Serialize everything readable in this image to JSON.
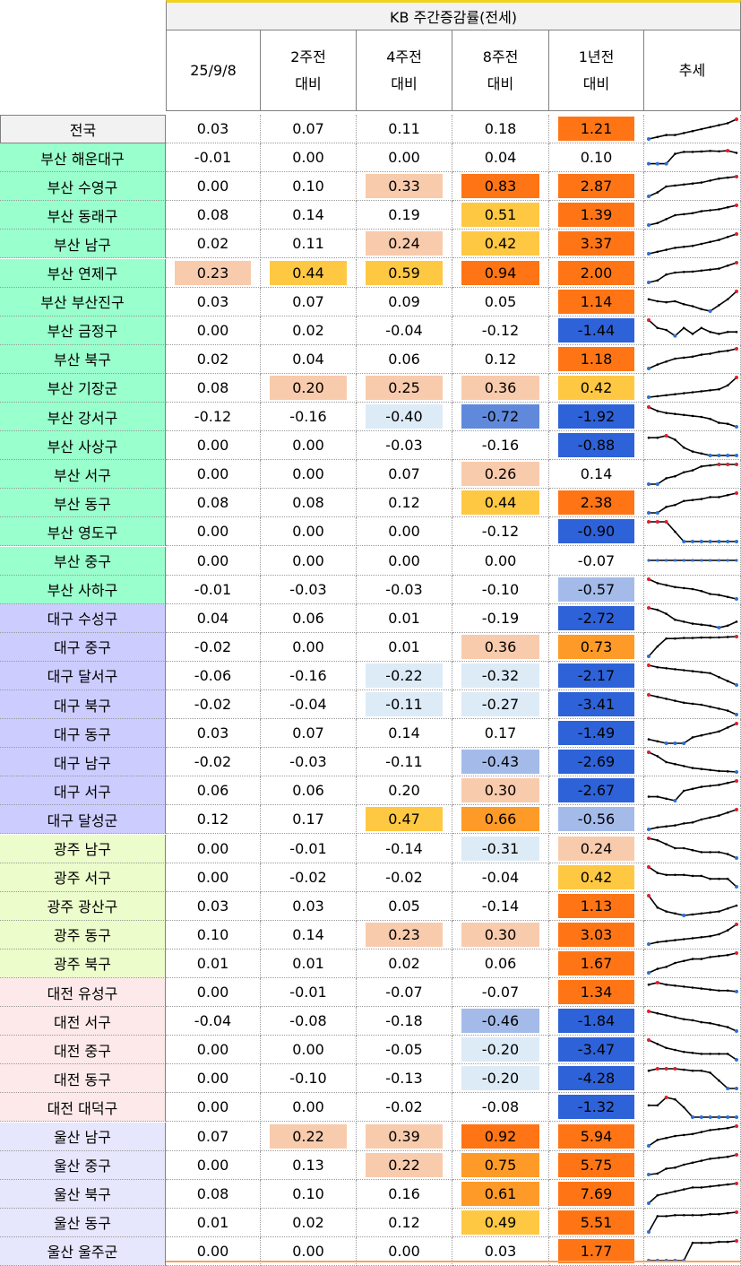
{
  "header": {
    "group_title": "KB 주간증감률(전세)",
    "columns": [
      "25/9/8",
      "2주전\n대비",
      "4주전\n대비",
      "8주전\n대비",
      "1년전\n대비",
      "추세"
    ]
  },
  "colors": {
    "region_national": "#f2f2f2",
    "region_busan": "#99ffcc",
    "region_daegu": "#ccccff",
    "region_gwangju": "#ecfccb",
    "region_daejeon": "#fde9e9",
    "region_ulsan": "#e6e6fc",
    "heat_light_pos": "#f8cbad",
    "heat_yellow": "#ffc843",
    "heat_orange_mid": "#fe9a27",
    "heat_orange_strong": "#ff7515",
    "heat_light_neg": "#ddebf7",
    "heat_mid_neg": "#a4bbea",
    "heat_mid2_neg": "#6189db",
    "heat_strong_neg": "#2e62d8",
    "trend_line": "#000000",
    "trend_max_marker": "#e0202a",
    "trend_min_marker": "#2a6fd6"
  },
  "rows": [
    {
      "name": "전국",
      "region": "national",
      "vals": [
        "0.03",
        "0.07",
        "0.11",
        "0.18",
        "1.21"
      ],
      "heat": [
        "",
        "",
        "",
        "",
        "os"
      ],
      "trend": [
        0,
        1,
        2,
        2,
        3,
        4,
        5,
        6,
        7,
        8,
        10
      ]
    },
    {
      "name": "부산 해운대구",
      "region": "busan",
      "vals": [
        "-0.01",
        "0.00",
        "0.00",
        "0.04",
        "0.10"
      ],
      "heat": [
        "",
        "",
        "",
        "",
        ""
      ],
      "trend": [
        2,
        2,
        2,
        7,
        8,
        8,
        8.2,
        8.5,
        8.3,
        8.6,
        7.5
      ]
    },
    {
      "name": "부산 수영구",
      "region": "busan",
      "vals": [
        "0.00",
        "0.10",
        "0.33",
        "0.83",
        "2.87"
      ],
      "heat": [
        "",
        "",
        "lp",
        "os",
        "os"
      ],
      "trend": [
        0,
        2,
        5,
        5.5,
        6,
        6.5,
        7,
        8,
        9,
        9.5,
        10
      ]
    },
    {
      "name": "부산 동래구",
      "region": "busan",
      "vals": [
        "0.08",
        "0.14",
        "0.19",
        "0.51",
        "1.39"
      ],
      "heat": [
        "",
        "",
        "",
        "y",
        "os"
      ],
      "trend": [
        0,
        1,
        3,
        5,
        5.5,
        6,
        7,
        7.5,
        8,
        9,
        10
      ]
    },
    {
      "name": "부산 남구",
      "region": "busan",
      "vals": [
        "0.02",
        "0.11",
        "0.24",
        "0.42",
        "3.37"
      ],
      "heat": [
        "",
        "",
        "lp",
        "y",
        "os"
      ],
      "trend": [
        0,
        1,
        2,
        3,
        3.5,
        4,
        5,
        6,
        7,
        8.5,
        10
      ]
    },
    {
      "name": "부산 연제구",
      "region": "busan",
      "vals": [
        "0.23",
        "0.44",
        "0.59",
        "0.94",
        "2.00"
      ],
      "heat": [
        "lp",
        "y",
        "y",
        "os",
        "os"
      ],
      "trend": [
        0,
        1,
        4,
        5,
        5.3,
        5.5,
        6,
        6.5,
        7,
        8.5,
        10
      ]
    },
    {
      "name": "부산 부산진구",
      "region": "busan",
      "vals": [
        "0.03",
        "0.07",
        "0.09",
        "0.05",
        "1.14"
      ],
      "heat": [
        "",
        "",
        "",
        "",
        "os"
      ],
      "trend": [
        6,
        5,
        4.5,
        5,
        3.5,
        2.5,
        1,
        0,
        3,
        6,
        10
      ]
    },
    {
      "name": "부산 금정구",
      "region": "busan",
      "vals": [
        "0.00",
        "0.02",
        "-0.04",
        "-0.12",
        "-1.44"
      ],
      "heat": [
        "",
        "",
        "",
        "",
        "sn"
      ],
      "trend": [
        10,
        6,
        5,
        2,
        6,
        3,
        6,
        4,
        3,
        4,
        4
      ]
    },
    {
      "name": "부산 북구",
      "region": "busan",
      "vals": [
        "0.02",
        "0.04",
        "0.06",
        "0.12",
        "1.18"
      ],
      "heat": [
        "",
        "",
        "",
        "",
        "os"
      ],
      "trend": [
        0,
        2,
        3.5,
        5,
        5.5,
        6,
        7,
        7.5,
        8.5,
        9,
        10
      ]
    },
    {
      "name": "부산 기장군",
      "region": "busan",
      "vals": [
        "0.08",
        "0.20",
        "0.25",
        "0.36",
        "0.42"
      ],
      "heat": [
        "",
        "lp",
        "lp",
        "lp",
        "y"
      ],
      "trend": [
        0,
        0.5,
        1,
        1.5,
        2,
        2.5,
        3,
        3.5,
        4,
        6,
        10
      ]
    },
    {
      "name": "부산 강서구",
      "region": "busan",
      "vals": [
        "-0.12",
        "-0.16",
        "-0.40",
        "-0.72",
        "-1.92"
      ],
      "heat": [
        "",
        "",
        "ln",
        "m2n",
        "sn"
      ],
      "trend": [
        10,
        8,
        7,
        6.5,
        6,
        5.5,
        5,
        4,
        2,
        1.5,
        0
      ]
    },
    {
      "name": "부산 사상구",
      "region": "busan",
      "vals": [
        "0.00",
        "0.00",
        "-0.03",
        "-0.16",
        "-0.88"
      ],
      "heat": [
        "",
        "",
        "",
        "",
        "sn"
      ],
      "trend": [
        9,
        9,
        10,
        8,
        4,
        2,
        1,
        0,
        0,
        0,
        0
      ]
    },
    {
      "name": "부산 서구",
      "region": "busan",
      "vals": [
        "0.00",
        "0.00",
        "0.07",
        "0.26",
        "0.14"
      ],
      "heat": [
        "",
        "",
        "",
        "lp",
        ""
      ],
      "trend": [
        0,
        0,
        3,
        4,
        6,
        7,
        9,
        9.5,
        10,
        10,
        10
      ]
    },
    {
      "name": "부산 동구",
      "region": "busan",
      "vals": [
        "0.08",
        "0.08",
        "0.12",
        "0.44",
        "2.38"
      ],
      "heat": [
        "",
        "",
        "",
        "y",
        "os"
      ],
      "trend": [
        0,
        0,
        3,
        4,
        6,
        6.5,
        7,
        8,
        8,
        9,
        10
      ]
    },
    {
      "name": "부산 영도구",
      "region": "busan",
      "vals": [
        "0.00",
        "0.00",
        "0.00",
        "-0.12",
        "-0.90"
      ],
      "heat": [
        "",
        "",
        "",
        "",
        "sn"
      ],
      "trend": [
        10,
        10,
        10,
        5,
        0,
        0,
        0,
        0,
        0,
        0,
        0
      ]
    },
    {
      "name": "부산 중구",
      "region": "busan",
      "vals": [
        "0.00",
        "0.00",
        "0.00",
        "0.00",
        "-0.07"
      ],
      "heat": [
        "",
        "",
        "",
        "",
        ""
      ],
      "trend": [
        5,
        5,
        5,
        5,
        5,
        5,
        5,
        5,
        5,
        5,
        5
      ]
    },
    {
      "name": "부산 사하구",
      "region": "busan",
      "vals": [
        "-0.01",
        "-0.03",
        "-0.03",
        "-0.10",
        "-0.57"
      ],
      "heat": [
        "",
        "",
        "",
        "",
        "mn"
      ],
      "trend": [
        10,
        8,
        7,
        6,
        5.5,
        5,
        4,
        2.5,
        2,
        1,
        0
      ]
    },
    {
      "name": "대구 수성구",
      "region": "daegu",
      "vals": [
        "0.04",
        "0.06",
        "0.01",
        "-0.19",
        "-2.72"
      ],
      "heat": [
        "",
        "",
        "",
        "",
        "sn"
      ],
      "trend": [
        10,
        9,
        7,
        4,
        3,
        2,
        1.5,
        1,
        0,
        1,
        3
      ]
    },
    {
      "name": "대구 중구",
      "region": "daegu",
      "vals": [
        "-0.02",
        "0.00",
        "0.01",
        "0.36",
        "0.73"
      ],
      "heat": [
        "",
        "",
        "",
        "lp",
        "om"
      ],
      "trend": [
        0,
        5,
        9,
        9,
        9.3,
        9.3,
        9.5,
        9.5,
        9.6,
        9.8,
        10
      ]
    },
    {
      "name": "대구 달서구",
      "region": "daegu",
      "vals": [
        "-0.06",
        "-0.16",
        "-0.22",
        "-0.32",
        "-2.17"
      ],
      "heat": [
        "",
        "",
        "ln",
        "ln",
        "sn"
      ],
      "trend": [
        10,
        9,
        8.5,
        8,
        7.5,
        7,
        6.5,
        6,
        4,
        2,
        0
      ]
    },
    {
      "name": "대구 북구",
      "region": "daegu",
      "vals": [
        "-0.02",
        "-0.04",
        "-0.11",
        "-0.27",
        "-3.41"
      ],
      "heat": [
        "",
        "",
        "ln",
        "ln",
        "sn"
      ],
      "trend": [
        10,
        9,
        8,
        7,
        6,
        5.5,
        5,
        4,
        3,
        2,
        0
      ]
    },
    {
      "name": "대구 동구",
      "region": "daegu",
      "vals": [
        "0.03",
        "0.07",
        "0.14",
        "0.17",
        "-1.49"
      ],
      "heat": [
        "",
        "",
        "",
        "",
        "sn"
      ],
      "trend": [
        2,
        1,
        0,
        0,
        0,
        3,
        4,
        5,
        6,
        8,
        10
      ]
    },
    {
      "name": "대구 남구",
      "region": "daegu",
      "vals": [
        "-0.02",
        "-0.03",
        "-0.11",
        "-0.43",
        "-2.69"
      ],
      "heat": [
        "",
        "",
        "",
        "mn",
        "sn"
      ],
      "trend": [
        10,
        8,
        5,
        4,
        3,
        2,
        1.5,
        1,
        0.5,
        0.3,
        0
      ]
    },
    {
      "name": "대구 서구",
      "region": "daegu",
      "vals": [
        "0.06",
        "0.06",
        "0.20",
        "0.30",
        "-2.67"
      ],
      "heat": [
        "",
        "",
        "",
        "lp",
        "sn"
      ],
      "trend": [
        2,
        2,
        1,
        0,
        5,
        6,
        7,
        7.5,
        8,
        9,
        10
      ]
    },
    {
      "name": "대구 달성군",
      "region": "daegu",
      "vals": [
        "0.12",
        "0.17",
        "0.47",
        "0.66",
        "-0.56"
      ],
      "heat": [
        "",
        "",
        "y",
        "om",
        "mn"
      ],
      "trend": [
        0,
        1,
        1.5,
        2,
        3,
        3.5,
        5,
        6,
        7,
        8.5,
        10
      ]
    },
    {
      "name": "광주 남구",
      "region": "gwangju",
      "vals": [
        "0.00",
        "-0.01",
        "-0.14",
        "-0.31",
        "0.24"
      ],
      "heat": [
        "",
        "",
        "",
        "ln",
        "lp"
      ],
      "trend": [
        10,
        9,
        7,
        5,
        5,
        4,
        3,
        3,
        3,
        2,
        0
      ]
    },
    {
      "name": "광주 서구",
      "region": "gwangju",
      "vals": [
        "0.00",
        "-0.02",
        "-0.02",
        "-0.04",
        "0.42"
      ],
      "heat": [
        "",
        "",
        "",
        "",
        "y"
      ],
      "trend": [
        10,
        7,
        6,
        6,
        6,
        5.5,
        5.5,
        4,
        4,
        4,
        0
      ]
    },
    {
      "name": "광주 광산구",
      "region": "gwangju",
      "vals": [
        "0.03",
        "0.03",
        "0.05",
        "-0.14",
        "1.13"
      ],
      "heat": [
        "",
        "",
        "",
        "",
        "os"
      ],
      "trend": [
        10,
        4,
        2,
        1,
        0,
        0.5,
        1,
        1.5,
        2,
        3.5,
        5
      ]
    },
    {
      "name": "광주 동구",
      "region": "gwangju",
      "vals": [
        "0.10",
        "0.14",
        "0.23",
        "0.30",
        "3.03"
      ],
      "heat": [
        "",
        "",
        "lp",
        "lp",
        "os"
      ],
      "trend": [
        0,
        1,
        1.5,
        2,
        2.5,
        3,
        3.5,
        4,
        5,
        7,
        10
      ]
    },
    {
      "name": "광주 북구",
      "region": "gwangju",
      "vals": [
        "0.01",
        "0.01",
        "0.02",
        "0.06",
        "1.67"
      ],
      "heat": [
        "",
        "",
        "",
        "",
        "os"
      ],
      "trend": [
        0,
        2,
        3,
        5,
        6,
        7,
        7,
        8,
        8.5,
        9,
        10
      ]
    },
    {
      "name": "대전 유성구",
      "region": "daejeon",
      "vals": [
        "0.00",
        "-0.01",
        "-0.07",
        "-0.07",
        "1.34"
      ],
      "heat": [
        "",
        "",
        "",
        "",
        "os"
      ],
      "trend": [
        9,
        10,
        9,
        8.5,
        8,
        7.5,
        7,
        6.5,
        6,
        6,
        5.5
      ]
    },
    {
      "name": "대전 서구",
      "region": "daejeon",
      "vals": [
        "-0.04",
        "-0.08",
        "-0.18",
        "-0.46",
        "-1.84"
      ],
      "heat": [
        "",
        "",
        "",
        "mn",
        "sn"
      ],
      "trend": [
        10,
        9,
        8,
        7,
        6,
        5.5,
        4.5,
        4,
        3,
        2,
        0
      ]
    },
    {
      "name": "대전 중구",
      "region": "daejeon",
      "vals": [
        "0.00",
        "0.00",
        "-0.05",
        "-0.20",
        "-3.47"
      ],
      "heat": [
        "",
        "",
        "",
        "ln",
        "sn"
      ],
      "trend": [
        10,
        8,
        6,
        5,
        4,
        3.5,
        3,
        3,
        3,
        3,
        0
      ]
    },
    {
      "name": "대전 동구",
      "region": "daejeon",
      "vals": [
        "0.00",
        "-0.10",
        "-0.13",
        "-0.20",
        "-4.28"
      ],
      "heat": [
        "",
        "",
        "",
        "ln",
        "sn"
      ],
      "trend": [
        9,
        10,
        10,
        10,
        9.5,
        9,
        9,
        8,
        4,
        0,
        0
      ]
    },
    {
      "name": "대전 대덕구",
      "region": "daejeon",
      "vals": [
        "0.00",
        "0.00",
        "-0.02",
        "-0.08",
        "-1.32"
      ],
      "heat": [
        "",
        "",
        "",
        "",
        "sn"
      ],
      "trend": [
        6,
        6,
        10,
        9,
        5,
        0,
        0,
        0,
        0,
        0,
        0
      ]
    },
    {
      "name": "울산 남구",
      "region": "ulsan",
      "vals": [
        "0.07",
        "0.22",
        "0.39",
        "0.92",
        "5.94"
      ],
      "heat": [
        "",
        "lp",
        "lp",
        "os",
        "os"
      ],
      "trend": [
        0,
        3,
        4,
        5,
        5.5,
        6,
        7,
        8,
        8.5,
        9,
        10
      ]
    },
    {
      "name": "울산 중구",
      "region": "ulsan",
      "vals": [
        "0.00",
        "0.13",
        "0.22",
        "0.75",
        "5.75"
      ],
      "heat": [
        "",
        "",
        "lp",
        "om",
        "os"
      ],
      "trend": [
        0,
        0.5,
        3,
        3.5,
        5,
        6,
        7,
        8,
        8.5,
        9,
        10
      ]
    },
    {
      "name": "울산 북구",
      "region": "ulsan",
      "vals": [
        "0.08",
        "0.10",
        "0.16",
        "0.61",
        "7.69"
      ],
      "heat": [
        "",
        "",
        "",
        "om",
        "os"
      ],
      "trend": [
        0,
        4,
        5,
        6,
        7,
        8,
        8,
        8.5,
        9,
        9.5,
        10
      ]
    },
    {
      "name": "울산 동구",
      "region": "ulsan",
      "vals": [
        "0.01",
        "0.02",
        "0.12",
        "0.49",
        "5.51"
      ],
      "heat": [
        "",
        "",
        "",
        "y",
        "os"
      ],
      "trend": [
        0,
        8,
        8,
        8.5,
        8.5,
        8.5,
        8.5,
        9,
        9,
        9.5,
        10
      ]
    },
    {
      "name": "울산 울주군",
      "region": "ulsan",
      "vals": [
        "0.00",
        "0.00",
        "0.00",
        "0.03",
        "1.77"
      ],
      "heat": [
        "",
        "",
        "",
        "",
        "os"
      ],
      "trend": [
        0,
        0,
        0,
        0,
        0,
        9,
        9,
        9,
        9.5,
        9.5,
        10
      ]
    }
  ]
}
